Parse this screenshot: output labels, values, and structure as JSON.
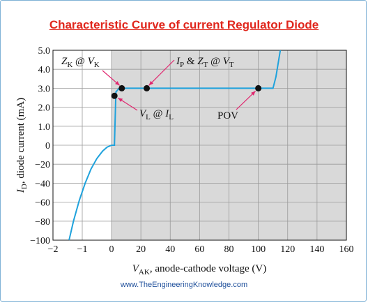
{
  "page": {
    "title": "Characteristic Curve of current Regulator Diode",
    "footer": "www.TheEngineeringKnowledge.com"
  },
  "chart_data": {
    "type": "line",
    "title": "Characteristic Curve of current Regulator Diode",
    "xlabel": {
      "main": "V",
      "sub": "AK",
      "rest": ", anode-cathode voltage (V)"
    },
    "ylabel": {
      "main": "I",
      "sub": "D",
      "rest": ", diode current (mA)"
    },
    "x_ticks_negative": [
      "−2",
      "−1",
      "0"
    ],
    "x_ticks_positive": [
      "20",
      "40",
      "60",
      "80",
      "100",
      "120",
      "140",
      "160"
    ],
    "y_ticks_upper": [
      "5.0",
      "4.0",
      "3.0",
      "2.0",
      "1.0",
      "0"
    ],
    "y_ticks_lower": [
      "−20",
      "−40",
      "−60",
      "−80",
      "−100"
    ],
    "shaded_region": "V ≥ 0",
    "grid": true,
    "colors": {
      "curve": "#1fa2dc",
      "shade": "#d9d9d9",
      "grid": "#9a9a9a",
      "title": "#e0261c",
      "footer": "#1d4e9a"
    },
    "series": [
      {
        "negative_region": {
          "x_V": [
            -1.45,
            -1.3,
            -1.1,
            -0.9,
            -0.7,
            -0.5,
            -0.3,
            -0.15,
            0
          ],
          "y_mA": [
            -100,
            -80,
            -58,
            -40,
            -25,
            -14,
            -6,
            -2,
            0
          ]
        },
        "positive_region": {
          "x_V": [
            0,
            2,
            3,
            5,
            7,
            25,
            100,
            110,
            112,
            115
          ],
          "y_mA": [
            0,
            0,
            2.8,
            2.98,
            3.0,
            3.0,
            3.0,
            3.0,
            3.6,
            5.0
          ]
        }
      }
    ],
    "points": [
      {
        "label_main": "Z",
        "label_sub": "K",
        "label_mid": " @ ",
        "label_main2": "V",
        "label_sub2": "K",
        "x": 7,
        "y": 3.0
      },
      {
        "label_main": "I",
        "label_sub": "P",
        "label_mid": " & ",
        "label_main2": "Z",
        "label_sub2": "T",
        "label_mid2": " @ ",
        "label_main3": "V",
        "label_sub3": "T",
        "x": 24,
        "y": 3.0
      },
      {
        "label_main": "V",
        "label_sub": "L",
        "label_mid": " @ ",
        "label_main2": "I",
        "label_sub2": "L",
        "x": 2,
        "y": 2.6
      },
      {
        "label_main": "POV",
        "x": 100,
        "y": 3.0
      }
    ]
  }
}
